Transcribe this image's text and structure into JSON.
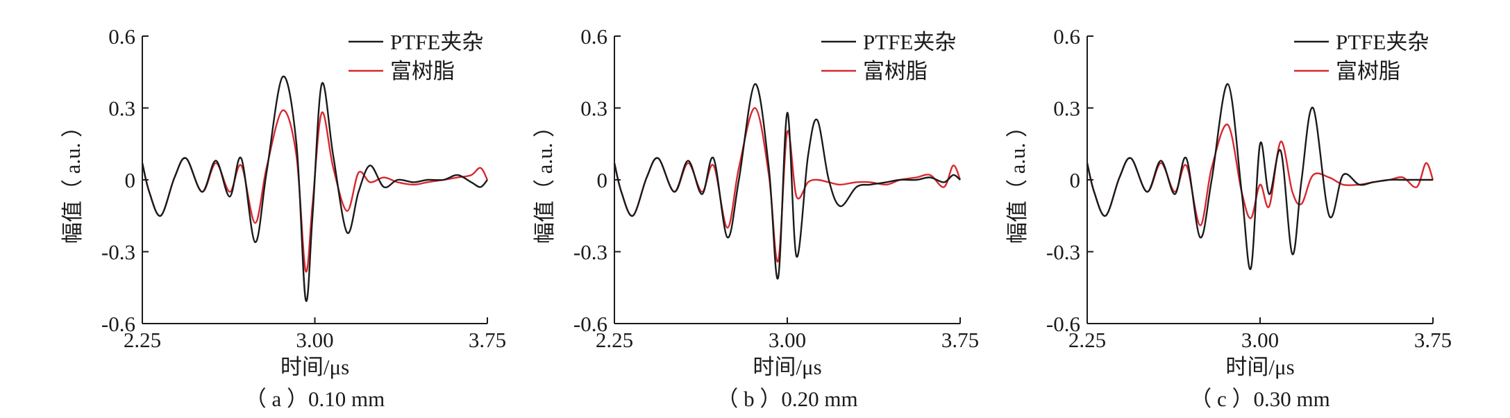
{
  "colors": {
    "ptfe": "#1a1a1a",
    "resin": "#d7282e",
    "axis": "#1a1a1a"
  },
  "chart_data": [
    {
      "type": "line",
      "caption": "（ a ）0.10 mm",
      "xlabel": "时间/μs",
      "ylabel": "幅值（ a.u. ）",
      "xlim": [
        2.25,
        3.75
      ],
      "ylim": [
        -0.6,
        0.6
      ],
      "xticks": [
        "2.25",
        "3.00",
        "3.75"
      ],
      "yticks": [
        "0.6",
        "0.3",
        "0",
        "-0.3",
        "-0.6"
      ],
      "legend": "top-right",
      "series": [
        {
          "name": "PTFE夹杂",
          "color": "#1a1a1a",
          "x": [
            2.25,
            2.28,
            2.33,
            2.39,
            2.44,
            2.51,
            2.57,
            2.63,
            2.68,
            2.74,
            2.79,
            2.86,
            2.92,
            2.96,
            2.99,
            3.03,
            3.08,
            3.14,
            3.19,
            3.24,
            3.3,
            3.36,
            3.43,
            3.49,
            3.56,
            3.62,
            3.68,
            3.72,
            3.75
          ],
          "y": [
            0.07,
            -0.05,
            -0.15,
            0.01,
            0.09,
            -0.05,
            0.08,
            -0.07,
            0.09,
            -0.26,
            0.03,
            0.43,
            0.15,
            -0.5,
            -0.15,
            0.4,
            0.1,
            -0.22,
            -0.05,
            0.06,
            -0.03,
            0.0,
            -0.01,
            0.0,
            0.0,
            0.02,
            -0.01,
            -0.03,
            0.0
          ]
        },
        {
          "name": "富树脂",
          "color": "#d7282e",
          "x": [
            2.25,
            2.28,
            2.33,
            2.39,
            2.44,
            2.51,
            2.57,
            2.63,
            2.68,
            2.74,
            2.79,
            2.86,
            2.92,
            2.96,
            2.99,
            3.03,
            3.08,
            3.14,
            3.19,
            3.24,
            3.3,
            3.36,
            3.43,
            3.49,
            3.56,
            3.62,
            3.68,
            3.72,
            3.75
          ],
          "y": [
            0.07,
            -0.05,
            -0.15,
            0.01,
            0.09,
            -0.05,
            0.07,
            -0.05,
            0.06,
            -0.18,
            0.05,
            0.29,
            0.1,
            -0.38,
            -0.1,
            0.28,
            0.05,
            -0.13,
            0.03,
            -0.01,
            0.01,
            -0.01,
            -0.02,
            -0.01,
            0.0,
            0.01,
            0.02,
            0.05,
            0.0
          ]
        }
      ]
    },
    {
      "type": "line",
      "caption": "（ b ）0.20 mm",
      "xlabel": "时间/μs",
      "ylabel": "幅值（ a.u. ）",
      "xlim": [
        2.25,
        3.75
      ],
      "ylim": [
        -0.6,
        0.6
      ],
      "xticks": [
        "2.25",
        "3.00",
        "3.75"
      ],
      "yticks": [
        "0.6",
        "0.3",
        "0",
        "-0.3",
        "-0.6"
      ],
      "legend": "top-right",
      "series": [
        {
          "name": "PTFE夹杂",
          "color": "#1a1a1a",
          "x": [
            2.25,
            2.28,
            2.33,
            2.39,
            2.44,
            2.51,
            2.57,
            2.63,
            2.68,
            2.74,
            2.79,
            2.86,
            2.92,
            2.96,
            3.0,
            3.04,
            3.09,
            3.13,
            3.18,
            3.23,
            3.3,
            3.36,
            3.43,
            3.49,
            3.56,
            3.62,
            3.68,
            3.72,
            3.75
          ],
          "y": [
            0.07,
            -0.05,
            -0.15,
            0.01,
            0.09,
            -0.05,
            0.08,
            -0.06,
            0.09,
            -0.24,
            0.0,
            0.4,
            0.05,
            -0.41,
            0.28,
            -0.32,
            0.1,
            0.25,
            0.0,
            -0.11,
            -0.03,
            -0.02,
            -0.01,
            0.0,
            0.0,
            0.01,
            -0.01,
            0.02,
            0.0
          ]
        },
        {
          "name": "富树脂",
          "color": "#d7282e",
          "x": [
            2.25,
            2.28,
            2.33,
            2.39,
            2.44,
            2.51,
            2.57,
            2.63,
            2.68,
            2.74,
            2.79,
            2.86,
            2.92,
            2.96,
            3.0,
            3.04,
            3.09,
            3.13,
            3.18,
            3.23,
            3.3,
            3.36,
            3.43,
            3.49,
            3.56,
            3.62,
            3.68,
            3.72,
            3.75
          ],
          "y": [
            0.07,
            -0.05,
            -0.15,
            0.01,
            0.09,
            -0.05,
            0.07,
            -0.05,
            0.06,
            -0.2,
            0.05,
            0.3,
            0.02,
            -0.34,
            0.2,
            -0.07,
            -0.01,
            0.0,
            -0.01,
            -0.02,
            -0.01,
            -0.01,
            -0.02,
            0.0,
            0.01,
            0.02,
            -0.03,
            0.06,
            0.0
          ]
        }
      ]
    },
    {
      "type": "line",
      "caption": "（ c ）0.30 mm",
      "xlabel": "时间/μs",
      "ylabel": "幅值（ a.u. ）",
      "xlim": [
        2.25,
        3.75
      ],
      "ylim": [
        -0.6,
        0.6
      ],
      "xticks": [
        "2.25",
        "3.00",
        "3.75"
      ],
      "yticks": [
        "0.6",
        "0.3",
        "0",
        "-0.3",
        "-0.6"
      ],
      "legend": "top-right",
      "series": [
        {
          "name": "PTFE夹杂",
          "color": "#1a1a1a",
          "x": [
            2.25,
            2.28,
            2.33,
            2.39,
            2.44,
            2.51,
            2.57,
            2.63,
            2.68,
            2.74,
            2.79,
            2.86,
            2.92,
            2.96,
            3.0,
            3.04,
            3.09,
            3.14,
            3.18,
            3.23,
            3.3,
            3.36,
            3.43,
            3.49,
            3.56,
            3.62,
            3.68,
            3.72,
            3.75
          ],
          "y": [
            0.07,
            -0.05,
            -0.15,
            0.01,
            0.09,
            -0.05,
            0.08,
            -0.06,
            0.09,
            -0.24,
            0.0,
            0.4,
            -0.05,
            -0.37,
            0.15,
            -0.06,
            0.12,
            -0.31,
            0.0,
            0.3,
            -0.15,
            0.02,
            -0.02,
            -0.01,
            0.0,
            0.0,
            0.0,
            0.0,
            0.0
          ]
        },
        {
          "name": "富树脂",
          "color": "#d7282e",
          "x": [
            2.25,
            2.28,
            2.33,
            2.39,
            2.44,
            2.51,
            2.57,
            2.63,
            2.68,
            2.74,
            2.79,
            2.86,
            2.92,
            2.96,
            3.0,
            3.04,
            3.09,
            3.14,
            3.18,
            3.23,
            3.3,
            3.36,
            3.43,
            3.49,
            3.56,
            3.62,
            3.68,
            3.72,
            3.75
          ],
          "y": [
            0.07,
            -0.05,
            -0.15,
            0.01,
            0.09,
            -0.05,
            0.07,
            -0.05,
            0.06,
            -0.19,
            0.05,
            0.23,
            -0.05,
            -0.16,
            -0.02,
            -0.11,
            0.16,
            -0.05,
            -0.1,
            0.02,
            0.01,
            -0.02,
            -0.02,
            -0.01,
            0.0,
            0.01,
            -0.03,
            0.07,
            0.0
          ]
        }
      ]
    }
  ]
}
